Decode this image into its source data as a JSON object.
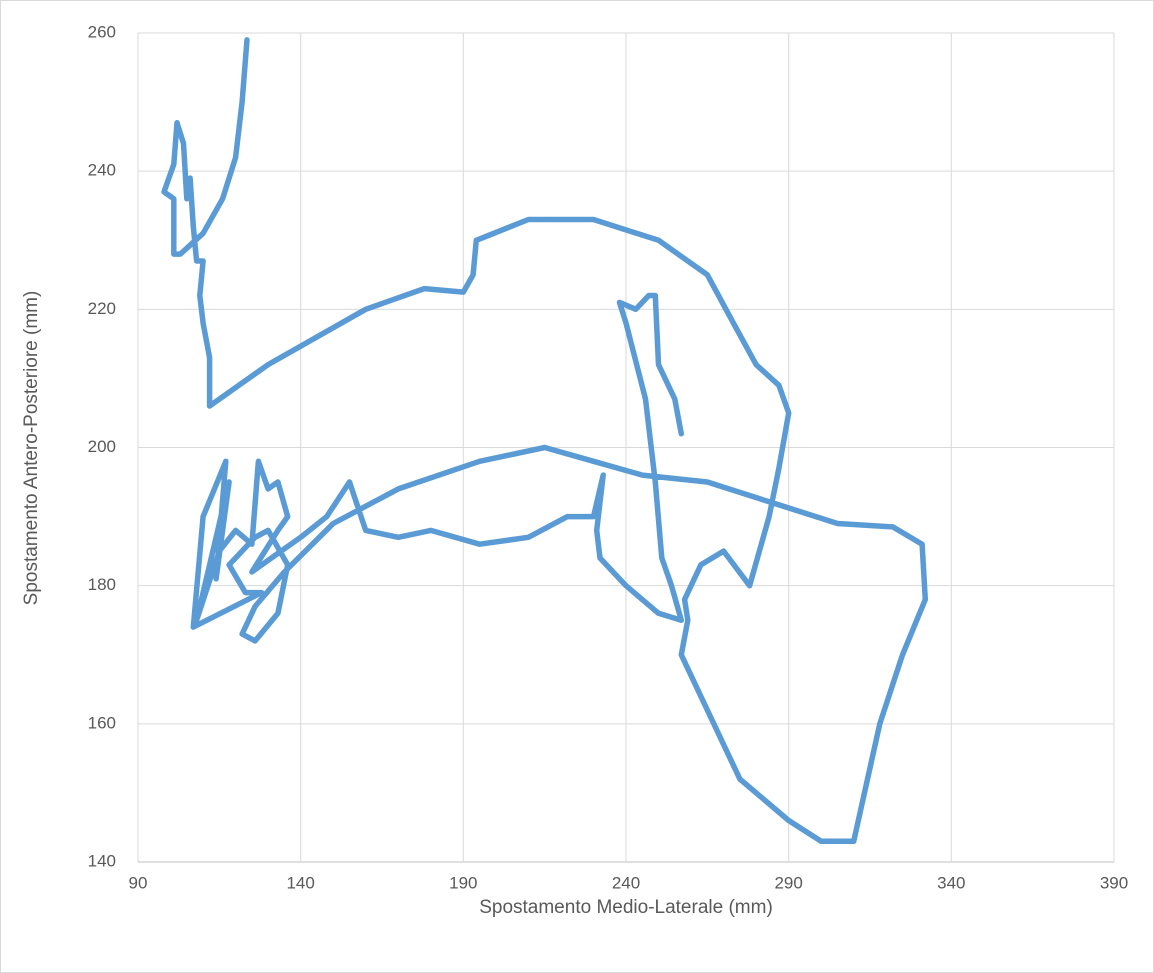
{
  "chart_data": {
    "type": "line",
    "x_label": "Spostamento Medio-Laterale (mm)",
    "y_label": "Spostamento Antero-Posteriore (mm)",
    "xlim": [
      90,
      390
    ],
    "xticks": [
      90,
      140,
      190,
      240,
      290,
      340,
      390
    ],
    "ylim": [
      140,
      260
    ],
    "yticks": [
      140,
      160,
      180,
      200,
      220,
      240,
      260
    ],
    "grid": true,
    "series": [
      {
        "color": "#5b9bd5",
        "x": [
          123.5,
          122,
          120,
          116,
          110,
          103,
          101,
          101,
          98,
          101,
          102,
          104,
          105,
          106,
          107,
          108,
          110,
          109,
          110,
          112,
          112,
          130,
          160,
          178,
          190,
          193,
          194,
          210,
          230,
          250,
          265,
          273,
          280,
          287,
          290,
          287,
          284,
          278,
          270,
          263,
          258,
          259,
          257,
          265,
          275,
          290,
          300,
          310,
          318,
          325,
          332,
          331,
          322,
          305,
          285,
          265,
          245,
          230,
          215,
          195,
          170,
          150,
          135,
          126,
          122,
          126,
          133,
          136,
          130,
          126,
          118,
          123,
          128,
          107,
          110,
          117,
          114,
          118,
          108,
          115,
          120,
          125,
          127,
          130,
          133,
          136,
          133,
          125,
          134,
          140,
          148,
          155,
          160,
          170,
          180,
          195,
          210,
          222,
          230,
          233,
          231,
          232,
          240,
          250,
          257,
          254,
          251,
          249,
          246,
          240,
          238,
          243,
          247,
          249,
          250,
          255,
          257
        ],
        "values": [
          259,
          250,
          242,
          236,
          231,
          228,
          228,
          236,
          237,
          241,
          247,
          244,
          236,
          239,
          232,
          227,
          227,
          222,
          218,
          213,
          206,
          212,
          220,
          223,
          222.5,
          225,
          230,
          233,
          233,
          230,
          225,
          218,
          212,
          209,
          205,
          197,
          190,
          180,
          185,
          183,
          178,
          175,
          170,
          162,
          152,
          146,
          143,
          143,
          160,
          170,
          178,
          186,
          188.5,
          189,
          192,
          195,
          196,
          198,
          200,
          198,
          194,
          189,
          182,
          177,
          173,
          172,
          176,
          183,
          188,
          187,
          183,
          179,
          179,
          174,
          190,
          198,
          181,
          195,
          175,
          185,
          188,
          186,
          198,
          194,
          195,
          190,
          188,
          182,
          185,
          187,
          190,
          195,
          188,
          187,
          188,
          186,
          187,
          190,
          190,
          196,
          188,
          184,
          180,
          176,
          175,
          180,
          184,
          195,
          207,
          218,
          221,
          220,
          222,
          222,
          212,
          207,
          202
        ]
      }
    ]
  }
}
